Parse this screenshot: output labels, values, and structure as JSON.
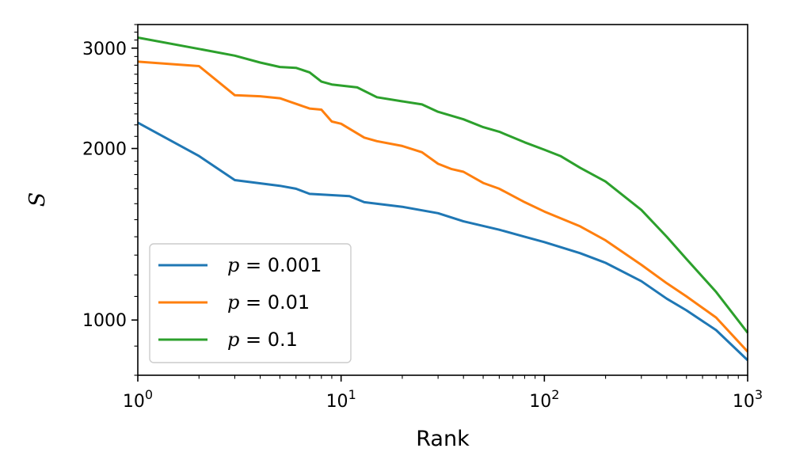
{
  "chart_data": {
    "type": "line",
    "xlabel": "Rank",
    "ylabel": "S",
    "xscale": "log",
    "yscale": "log",
    "xlim": [
      1,
      1000
    ],
    "ylim": [
      800,
      3300
    ],
    "grid": false,
    "legend_placement": "lower-left",
    "x_ticks": [
      {
        "value": 1,
        "base": "10",
        "exp": "0"
      },
      {
        "value": 10,
        "base": "10",
        "exp": "1"
      },
      {
        "value": 100,
        "base": "10",
        "exp": "2"
      },
      {
        "value": 1000,
        "base": "10",
        "exp": "3"
      }
    ],
    "y_ticks": [
      {
        "value": 1000,
        "label": "1000"
      },
      {
        "value": 2000,
        "label": "2000"
      },
      {
        "value": 3000,
        "label": "3000"
      }
    ],
    "series": [
      {
        "name": "p = 0.001",
        "legend_var": "p",
        "legend_value": "= 0.001",
        "color": "#1f77b4",
        "points": [
          [
            1,
            2220
          ],
          [
            2,
            1940
          ],
          [
            3,
            1760
          ],
          [
            5,
            1720
          ],
          [
            6,
            1700
          ],
          [
            7,
            1665
          ],
          [
            11,
            1650
          ],
          [
            13,
            1610
          ],
          [
            20,
            1580
          ],
          [
            30,
            1540
          ],
          [
            40,
            1490
          ],
          [
            60,
            1440
          ],
          [
            80,
            1400
          ],
          [
            100,
            1370
          ],
          [
            150,
            1310
          ],
          [
            200,
            1260
          ],
          [
            300,
            1170
          ],
          [
            400,
            1090
          ],
          [
            500,
            1040
          ],
          [
            700,
            960
          ],
          [
            1000,
            850
          ]
        ]
      },
      {
        "name": "p = 0.01",
        "legend_var": "p",
        "legend_value": "= 0.01",
        "color": "#ff7f0e",
        "points": [
          [
            1,
            2840
          ],
          [
            2,
            2790
          ],
          [
            3,
            2480
          ],
          [
            4,
            2470
          ],
          [
            5,
            2450
          ],
          [
            7,
            2350
          ],
          [
            8,
            2340
          ],
          [
            9,
            2230
          ],
          [
            10,
            2210
          ],
          [
            13,
            2090
          ],
          [
            15,
            2060
          ],
          [
            20,
            2020
          ],
          [
            25,
            1970
          ],
          [
            30,
            1880
          ],
          [
            35,
            1840
          ],
          [
            40,
            1820
          ],
          [
            50,
            1740
          ],
          [
            60,
            1700
          ],
          [
            80,
            1610
          ],
          [
            100,
            1550
          ],
          [
            150,
            1460
          ],
          [
            200,
            1380
          ],
          [
            300,
            1250
          ],
          [
            400,
            1160
          ],
          [
            500,
            1100
          ],
          [
            700,
            1010
          ],
          [
            1000,
            880
          ]
        ]
      },
      {
        "name": "p = 0.1",
        "legend_var": "p",
        "legend_value": "= 0.1",
        "color": "#2ca02c",
        "points": [
          [
            1,
            3130
          ],
          [
            2,
            2990
          ],
          [
            3,
            2910
          ],
          [
            4,
            2830
          ],
          [
            5,
            2780
          ],
          [
            6,
            2770
          ],
          [
            7,
            2720
          ],
          [
            8,
            2620
          ],
          [
            9,
            2590
          ],
          [
            12,
            2560
          ],
          [
            15,
            2460
          ],
          [
            20,
            2420
          ],
          [
            25,
            2390
          ],
          [
            30,
            2320
          ],
          [
            40,
            2250
          ],
          [
            50,
            2180
          ],
          [
            60,
            2140
          ],
          [
            80,
            2050
          ],
          [
            100,
            1990
          ],
          [
            120,
            1940
          ],
          [
            150,
            1850
          ],
          [
            200,
            1750
          ],
          [
            300,
            1560
          ],
          [
            400,
            1400
          ],
          [
            500,
            1280
          ],
          [
            700,
            1120
          ],
          [
            1000,
            950
          ]
        ]
      }
    ]
  }
}
